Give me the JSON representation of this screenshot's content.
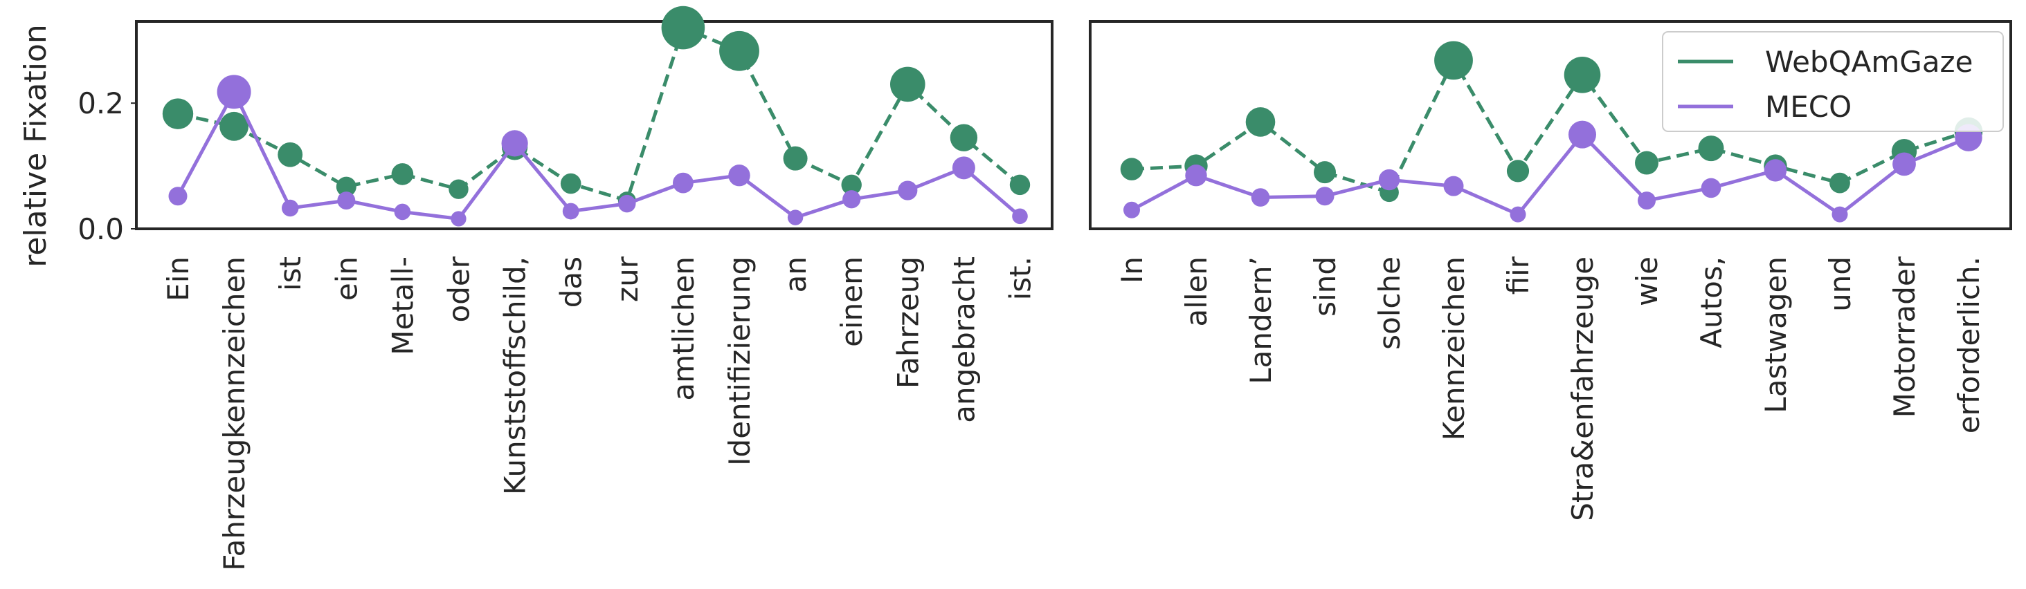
{
  "chart_data": [
    {
      "type": "line",
      "ylabel": "relative Fixation",
      "ylim": [
        0,
        0.33
      ],
      "yticks": [
        0.0,
        0.2
      ],
      "grid": false,
      "categories": [
        "Ein",
        "Fahrzeugkennzeichen",
        "ist",
        "ein",
        "Metall-",
        "oder",
        "Kunststoffschild,",
        "das",
        "zur",
        "amtlichen",
        "Identifizierung",
        "an",
        "einem",
        "Fahrzeug",
        "angebracht",
        "ist."
      ],
      "series": [
        {
          "name": "WebQAmGaze",
          "color": "#3a8c6a",
          "style": "dashed",
          "values": [
            0.183,
            0.163,
            0.118,
            0.067,
            0.087,
            0.063,
            0.13,
            0.072,
            0.045,
            0.32,
            0.283,
            0.112,
            0.07,
            0.23,
            0.145,
            0.07
          ]
        },
        {
          "name": "MECO",
          "color": "#9370db",
          "style": "solid",
          "values": [
            0.052,
            0.218,
            0.033,
            0.045,
            0.027,
            0.016,
            0.136,
            0.028,
            0.04,
            0.073,
            0.085,
            0.018,
            0.047,
            0.061,
            0.097,
            0.02
          ]
        }
      ]
    },
    {
      "type": "line",
      "ylim": [
        0,
        0.33
      ],
      "grid": false,
      "legend": "top-right",
      "categories": [
        "In",
        "allen",
        "Landern’",
        "sind",
        "solche",
        "Kennzeichen",
        "fiir",
        "Stra&enfahrzeuge",
        "wie",
        "Autos,",
        "Lastwagen",
        "und",
        "Motorrader",
        "erforderlich."
      ],
      "series": [
        {
          "name": "WebQAmGaze",
          "color": "#3a8c6a",
          "style": "dashed",
          "values": [
            0.095,
            0.1,
            0.17,
            0.09,
            0.058,
            0.268,
            0.092,
            0.245,
            0.105,
            0.128,
            0.1,
            0.073,
            0.123,
            0.155
          ]
        },
        {
          "name": "MECO",
          "color": "#9370db",
          "style": "solid",
          "values": [
            0.03,
            0.085,
            0.05,
            0.052,
            0.078,
            0.068,
            0.023,
            0.15,
            0.045,
            0.065,
            0.093,
            0.023,
            0.103,
            0.145
          ]
        }
      ]
    }
  ]
}
